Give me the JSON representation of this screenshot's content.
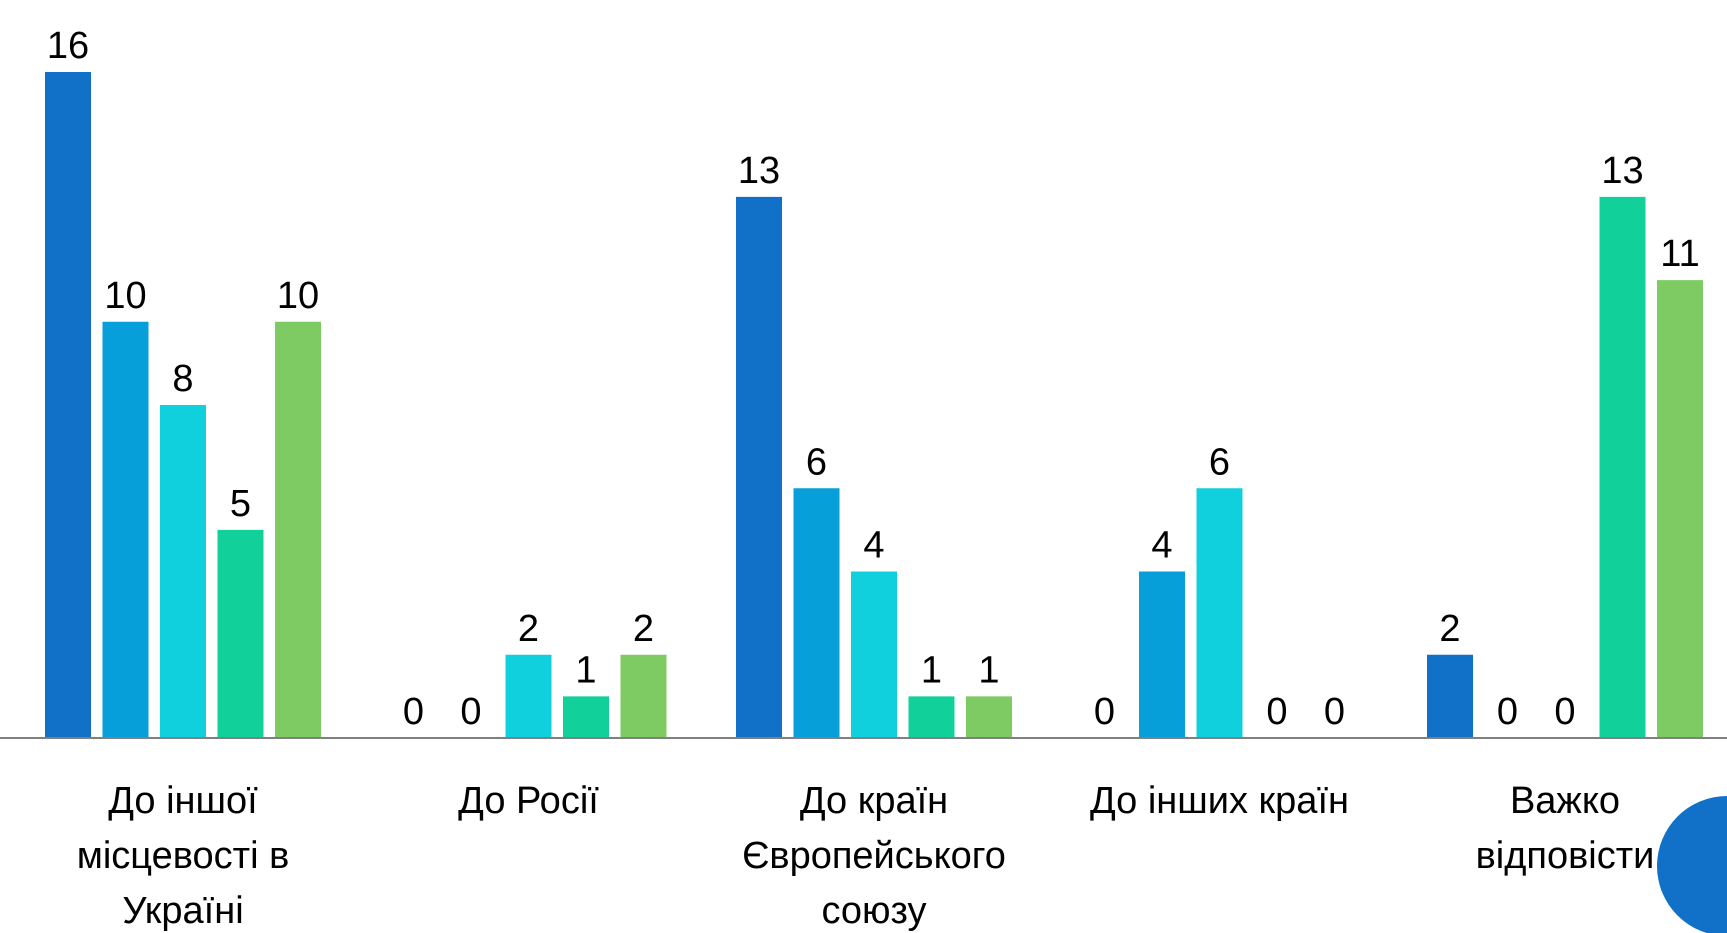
{
  "chart_data": {
    "type": "bar",
    "categories": [
      [
        "До іншої",
        "місцевості в",
        "Україні"
      ],
      [
        "До Росії"
      ],
      [
        "До країн",
        "Європейського",
        "союзу"
      ],
      [
        "До інших країн"
      ],
      [
        "Важко",
        "відповісти"
      ]
    ],
    "series": [
      {
        "values": [
          16,
          0,
          13,
          0,
          2
        ],
        "color": "#1170C8"
      },
      {
        "values": [
          10,
          0,
          6,
          4,
          0
        ],
        "color": "#079FD9"
      },
      {
        "values": [
          8,
          2,
          4,
          6,
          0
        ],
        "color": "#0FD0DC"
      },
      {
        "values": [
          5,
          1,
          1,
          0,
          13
        ],
        "color": "#12D09A"
      },
      {
        "values": [
          10,
          2,
          1,
          0,
          11
        ],
        "color": "#7ECB64"
      }
    ],
    "ylim": [
      0,
      16
    ],
    "data_labels": true,
    "axis_color": "#808080",
    "decor_circle_color": "#1170C8"
  }
}
